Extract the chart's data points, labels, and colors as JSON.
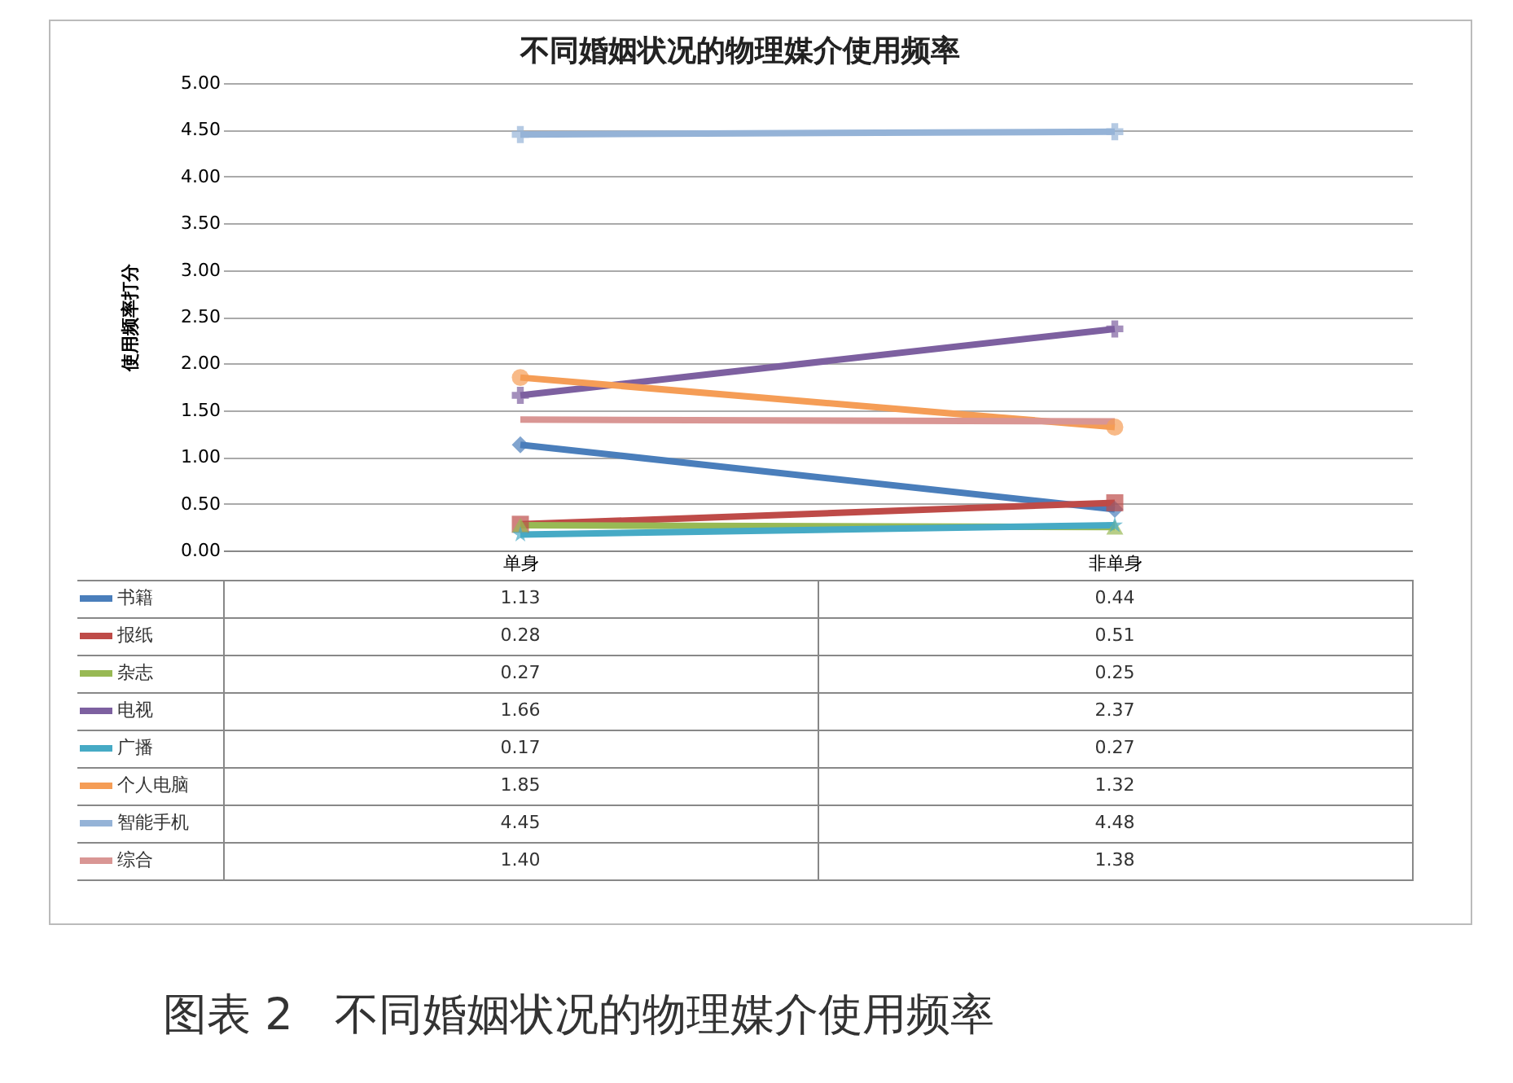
{
  "chart_data": {
    "type": "line",
    "title": "不同婚姻状况的物理媒介使用频率",
    "ylabel": "使用频率打分",
    "categories": [
      "单身",
      "非单身"
    ],
    "series": [
      {
        "name": "书籍",
        "color": "#4a7ebb",
        "marker": "diamond",
        "values": [
          1.13,
          0.44
        ],
        "value_labels": [
          "1.13",
          "0.44"
        ]
      },
      {
        "name": "报纸",
        "color": "#be4b48",
        "marker": "square",
        "values": [
          0.28,
          0.51
        ],
        "value_labels": [
          "0.28",
          "0.51"
        ]
      },
      {
        "name": "杂志",
        "color": "#98b954",
        "marker": "triangle",
        "values": [
          0.27,
          0.25
        ],
        "value_labels": [
          "0.27",
          "0.25"
        ]
      },
      {
        "name": "电视",
        "color": "#7d60a0",
        "marker": "cross",
        "values": [
          1.66,
          2.37
        ],
        "value_labels": [
          "1.66",
          "2.37"
        ]
      },
      {
        "name": "广播",
        "color": "#46aac5",
        "marker": "star",
        "values": [
          0.17,
          0.27
        ],
        "value_labels": [
          "0.17",
          "0.27"
        ]
      },
      {
        "name": "个人电脑",
        "color": "#f59d56",
        "marker": "circle",
        "values": [
          1.85,
          1.32
        ],
        "value_labels": [
          "1.85",
          "1.32"
        ]
      },
      {
        "name": "智能手机",
        "color": "#95b3d7",
        "marker": "cross",
        "values": [
          4.45,
          4.48
        ],
        "value_labels": [
          "4.45",
          "4.48"
        ]
      },
      {
        "name": "综合",
        "color": "#d99694",
        "marker": "none",
        "values": [
          1.4,
          1.38
        ],
        "value_labels": [
          "1.40",
          "1.38"
        ]
      }
    ],
    "ylim": [
      0,
      5
    ],
    "yticks": [
      {
        "value": 0,
        "label": "0.00"
      },
      {
        "value": 0.5,
        "label": "0.50"
      },
      {
        "value": 1,
        "label": "1.00"
      },
      {
        "value": 1.5,
        "label": "1.50"
      },
      {
        "value": 2,
        "label": "2.00"
      },
      {
        "value": 2.5,
        "label": "2.50"
      },
      {
        "value": 3,
        "label": "3.00"
      },
      {
        "value": 3.5,
        "label": "3.50"
      },
      {
        "value": 4,
        "label": "4.00"
      },
      {
        "value": 4.5,
        "label": "4.50"
      },
      {
        "value": 5,
        "label": "5.00"
      }
    ],
    "grid": "y",
    "legend": "bottom left",
    "annotations": [
      "图表 2   不同婚姻状况的物理媒介使用频率"
    ]
  }
}
